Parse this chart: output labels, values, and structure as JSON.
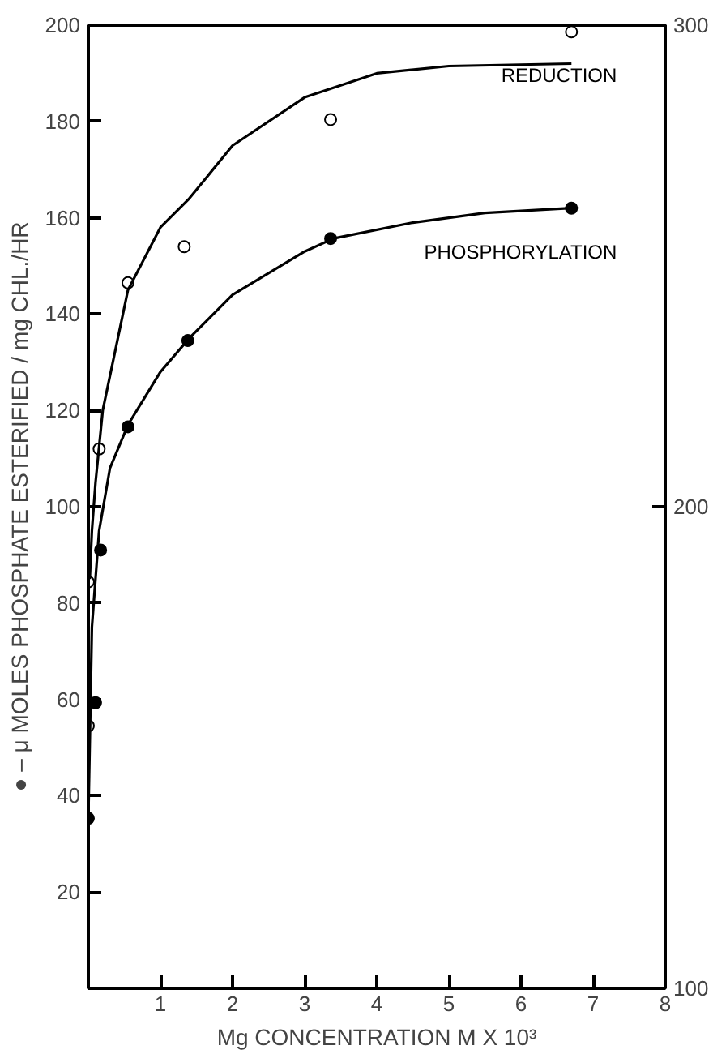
{
  "chart_data": {
    "type": "scatter",
    "xlabel": "Mg CONCENTRATION M X 10³",
    "ylabel": "● – μ MOLES PHOSPHATE ESTERIFIED / mg CHL./HR",
    "xlim": [
      0,
      8
    ],
    "xticks": [
      1,
      2,
      3,
      4,
      5,
      6,
      7,
      8
    ],
    "ylim": [
      0,
      200
    ],
    "yticks": [
      20,
      40,
      60,
      80,
      100,
      120,
      140,
      160,
      180,
      200
    ],
    "y2lim": [
      100,
      300
    ],
    "y2ticks": [
      100,
      200,
      300
    ],
    "grid": false,
    "legend": false,
    "marker": "circle",
    "series": [
      {
        "name": "REDUCTION",
        "axis": "y2",
        "color": "#000000",
        "x": [
          0,
          0,
          0.15,
          0.55,
          1.33,
          3.36,
          6.7
        ],
        "values": [
          154.5,
          184.4,
          212,
          246.5,
          254,
          280.4,
          298.6
        ]
      },
      {
        "name": "PHOSPHORYLATION",
        "color": "#000000",
        "x": [
          0,
          0.1,
          0.17,
          0.55,
          1.38,
          3.36,
          6.7
        ],
        "values": [
          35.3,
          59.3,
          91,
          116.6,
          134.5,
          155.7,
          162
        ]
      },
      {
        "type": "line",
        "axis": "y2",
        "color": "#000000",
        "marker": "none",
        "x": [
          0.02,
          0.05,
          0.1,
          0.2,
          0.55,
          1,
          1.4,
          2,
          3,
          4,
          5,
          6.7
        ],
        "values": [
          185,
          195,
          205,
          220,
          245,
          258,
          264,
          275,
          285,
          290,
          291.5,
          292
        ]
      },
      {
        "type": "line",
        "color": "#000000",
        "marker": "none",
        "x": [
          0,
          0.05,
          0.15,
          0.3,
          0.55,
          1,
          1.4,
          2,
          3,
          3.4,
          4.5,
          5.5,
          6.7
        ],
        "values": [
          35,
          75,
          95,
          108,
          117,
          128,
          135,
          144,
          153,
          155.7,
          159,
          161,
          162
        ]
      }
    ]
  }
}
